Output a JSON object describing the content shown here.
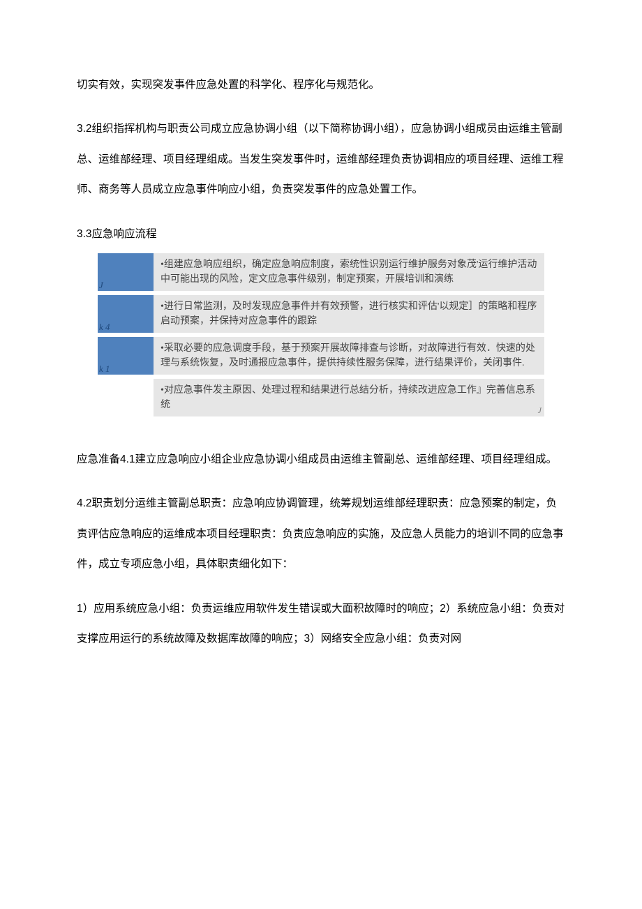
{
  "para1": "切实有效，实现突发事件应急处置的科学化、程序化与规范化。",
  "para2": "3.2组织指挥机构与职责公司成立应急协调小组（以下简称协调小组），应急协调小组成员由运维主管副总、运维部经理、项目经理组成。当发生突发事件时，运维部经理负责协调相应的项目经理、运维工程师、商务等人员成立应急事件响应小组，负责突发事件的应急处置工作。",
  "heading33": "3.3应急响应流程",
  "diagram": {
    "colors": {
      "left_bg": "#4f81bd",
      "right_bg": "#e6e6e6",
      "left_tag_color": "#1f497d",
      "text_color": "#444444"
    },
    "rows": [
      {
        "left_tag": "J",
        "text": "•组建应急响应组织，确定应急响应制度，索统性识别运行维护服务对象茂'运行维护活动中可能出现的风险，定文应急事件级别，制定预案，开展培训和演练",
        "right_tag": ""
      },
      {
        "left_tag": "k 4",
        "text": "•进行日常监测，及时发现应急事件并有效预警，进行核实和评估'以规定］的策略和程序启动预案，并保持对应急事件的跟踪",
        "right_tag": ""
      },
      {
        "left_tag": "k 1",
        "text": "•采取必要的应急调度手段，基于预案开展故障排查与诊断，对故障进行有效．快速的处理与系统恢复，及时通报应急事件，提供持续性服务保障，进行结果评价，关闭事件.",
        "right_tag": ""
      },
      {
        "left_tag": "",
        "text": "•对应急事件发主原因、处理过程和结果进行总结分析，持续改进应急工作』完善信息系统",
        "right_tag": "J"
      }
    ]
  },
  "para4": "应急准备4.1建立应急响应小组企业应急协调小组成员由运维主管副总、运维部经理、项目经理组成。",
  "para5": "4.2职责划分运维主管副总职责：应急响应协调管理，统筹规划运维部经理职责：应急预案的制定，负责评估应急响应的运维成本项目经理职责：负责应急响应的实施，及应急人员能力的培训不同的应急事件，成立专项应急小组，具体职责细化如下：",
  "para6": "1）应用系统应急小组：负责运维应用软件发生错误或大面积故障时的响应；2）系统应急小组：负责对支撑应用运行的系统故障及数据库故障的响应；3）网络安全应急小组：负责对网"
}
